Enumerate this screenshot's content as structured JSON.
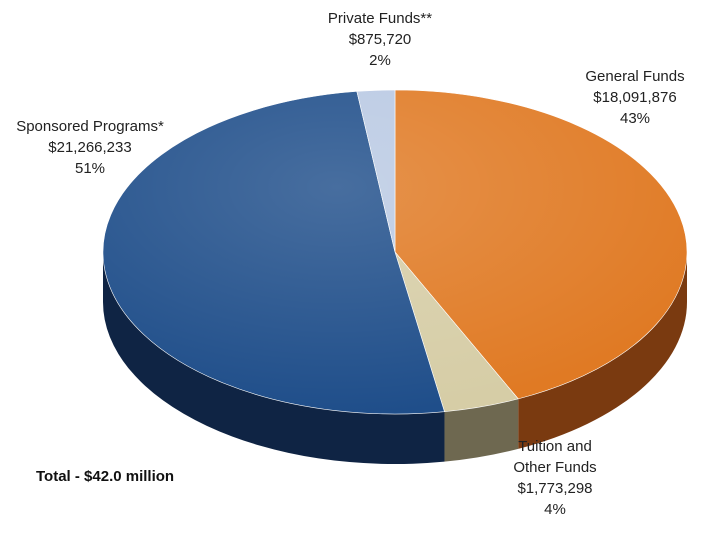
{
  "chart_data": {
    "type": "pie",
    "title": "",
    "total_label": "Total - $42.0 million",
    "slices": [
      {
        "name": "General Funds",
        "amount": "$18,091,876",
        "percent": "43%",
        "value": 18091876,
        "color": "#e07a24",
        "side_color": "#7a3a10"
      },
      {
        "name": "Tuition and Other Funds",
        "amount": "$1,773,298",
        "percent": "4%",
        "value": 1773298,
        "color": "#d6cda6",
        "side_color": "#6e6850"
      },
      {
        "name": "Sponsored Programs*",
        "amount": "$21,266,233",
        "percent": "51%",
        "value": 21266233,
        "color": "#1f4e8a",
        "side_color": "#0f2444"
      },
      {
        "name": "Private Funds**",
        "amount": "$875,720",
        "percent": "2%",
        "value": 875720,
        "color": "#b9c9e3",
        "side_color": "#5d6a80"
      }
    ]
  },
  "labels": {
    "general": {
      "line1": "General Funds",
      "line2": "$18,091,876",
      "line3": "43%"
    },
    "tuition": {
      "line1": "Tuition and",
      "line2": "Other Funds",
      "line3": "$1,773,298",
      "line4": "4%"
    },
    "sponsored": {
      "line1": "Sponsored Programs*",
      "line2": "$21,266,233",
      "line3": "51%"
    },
    "private": {
      "line1": "Private Funds**",
      "line2": "$875,720",
      "line3": "2%"
    }
  }
}
